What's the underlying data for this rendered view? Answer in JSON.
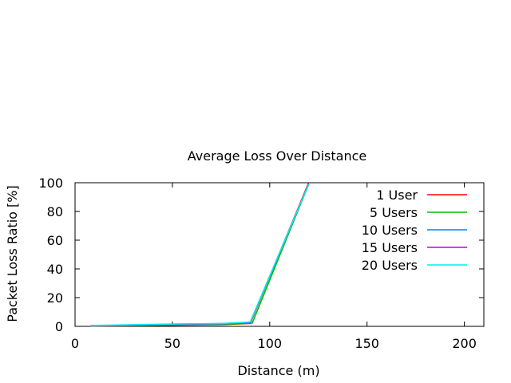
{
  "chart_data": {
    "type": "line",
    "title": "Average Loss Over Distance",
    "xlabel": "Distance (m)",
    "ylabel": "Packet Loss Ratio [%]",
    "xlim": [
      0,
      210
    ],
    "ylim": [
      0,
      100
    ],
    "xticks": [
      0,
      50,
      100,
      150,
      200
    ],
    "yticks": [
      0,
      20,
      40,
      60,
      80,
      100
    ],
    "legend_position": "top-right",
    "grid": false,
    "series": [
      {
        "name": "1 User",
        "color": "#ff0000",
        "x": [
          8,
          25,
          50,
          75,
          90,
          120
        ],
        "y": [
          0.2,
          0.4,
          0.8,
          1.2,
          2.0,
          100
        ]
      },
      {
        "name": "5 Users",
        "color": "#00c000",
        "x": [
          8,
          25,
          50,
          75,
          91,
          120
        ],
        "y": [
          0.3,
          0.5,
          1.0,
          1.5,
          2.2,
          99
        ]
      },
      {
        "name": "10 Users",
        "color": "#0080ff",
        "x": [
          8,
          25,
          50,
          75,
          90,
          120
        ],
        "y": [
          0.4,
          0.7,
          1.5,
          1.8,
          2.8,
          99
        ]
      },
      {
        "name": "15 Users",
        "color": "#c000ff",
        "x": [
          8,
          25,
          50,
          75,
          90,
          120
        ],
        "y": [
          0.5,
          0.9,
          1.4,
          1.9,
          2.6,
          99
        ]
      },
      {
        "name": "20 Users",
        "color": "#00eeee",
        "x": [
          8,
          25,
          50,
          75,
          90,
          120
        ],
        "y": [
          0.6,
          1.0,
          1.6,
          2.0,
          3.0,
          99
        ]
      }
    ]
  }
}
